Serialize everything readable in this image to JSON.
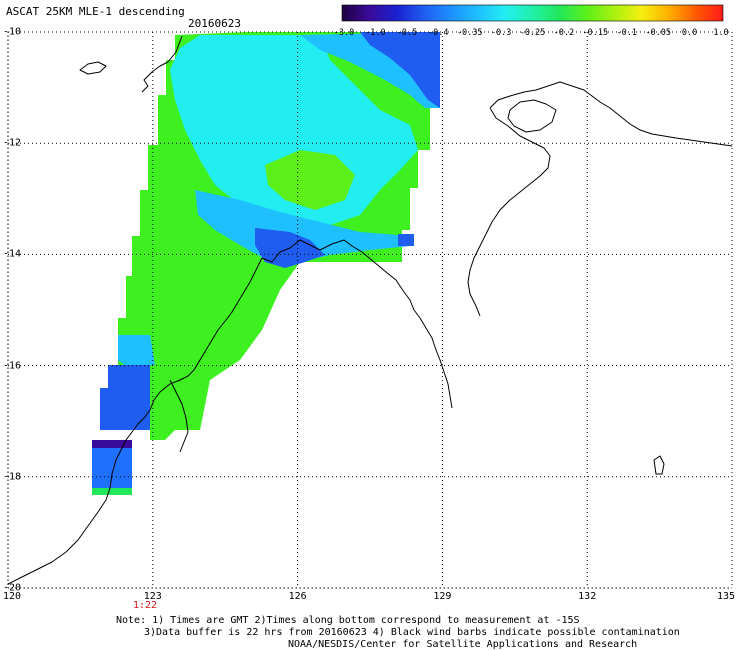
{
  "header": {
    "title": "ASCAT 25KM MLE-1 descending",
    "date": "20160623"
  },
  "colorbar": {
    "labels": [
      "-3.0",
      "-1.0",
      "-0.5",
      "-0.4",
      "-0.35",
      "-0.3",
      "-0.25",
      "-0.2",
      "-0.15",
      "-0.1",
      "-0.05",
      "0.0",
      "1.0"
    ],
    "colors": [
      "#200040",
      "#3a0a9a",
      "#1a20d0",
      "#1f5cf0",
      "#1e90ff",
      "#1ec0ff",
      "#22eef2",
      "#20f0a8",
      "#22e85a",
      "#5cf018",
      "#aaf010",
      "#f6f010",
      "#ffb000",
      "#ff5a00",
      "#ff1a1a"
    ]
  },
  "map": {
    "lat_labels": [
      "-10",
      "-12",
      "-14",
      "-16",
      "-18",
      "-20"
    ],
    "lon_labels": [
      "120",
      "123",
      "126",
      "129",
      "132",
      "135"
    ],
    "time_label": "1:22"
  },
  "notes": {
    "line1": "Note: 1) Times are GMT 2)Times along bottom correspond to measurement at -15S",
    "line2": "3)Data buffer is 22 hrs from 20160623 4) Black wind barbs indicate possible contamination",
    "line3": "NOAA/NESDIS/Center for Satellite Applications and Research"
  }
}
